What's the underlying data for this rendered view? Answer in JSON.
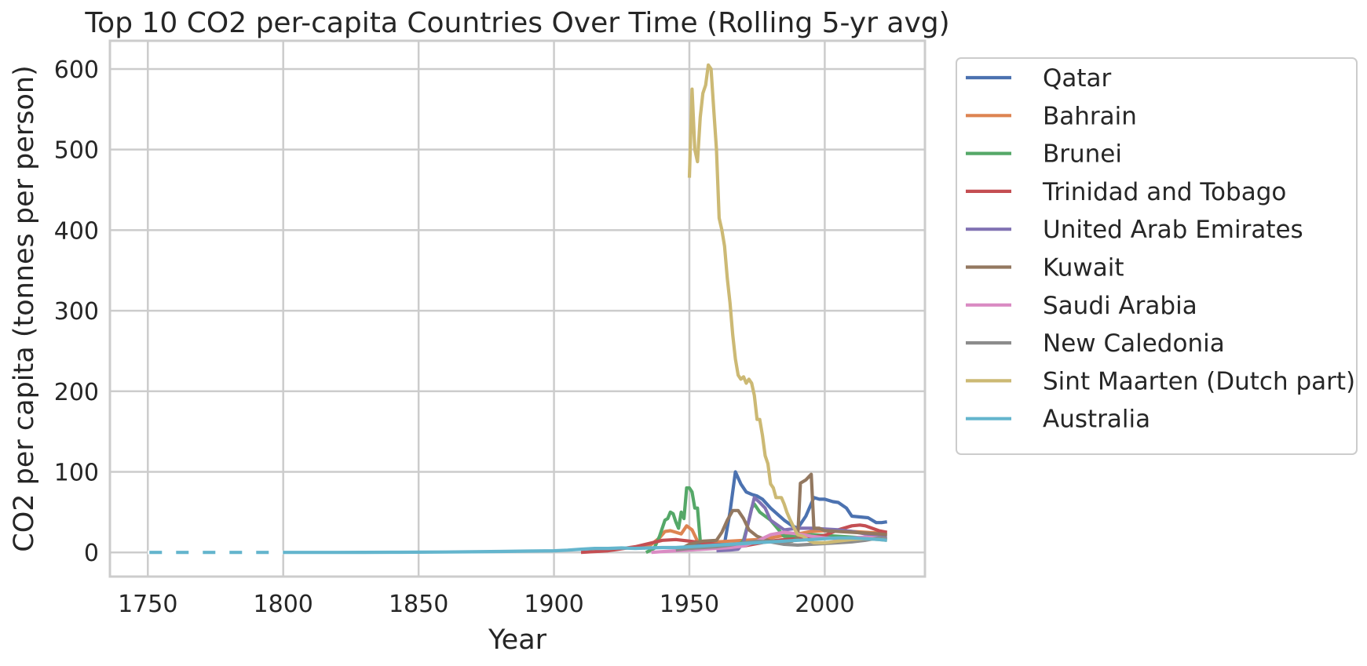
{
  "chart_data": {
    "type": "line",
    "title": "Top 10 CO2 per-capita Countries Over Time (Rolling 5-yr avg)",
    "xlabel": "Year",
    "ylabel": "CO2 per capita (tonnes per person)",
    "xlim": [
      1736,
      2037
    ],
    "ylim": [
      -30,
      635
    ],
    "xticks": [
      1750,
      1800,
      1850,
      1900,
      1950,
      2000
    ],
    "yticks": [
      0,
      100,
      200,
      300,
      400,
      500,
      600
    ],
    "grid": true,
    "legend_position": "outside-right",
    "series": [
      {
        "name": "Qatar",
        "color": "#4c72b0",
        "x": [
          1950,
          1955,
          1960,
          1963,
          1965,
          1967,
          1969,
          1971,
          1973,
          1975,
          1977,
          1980,
          1985,
          1988,
          1990,
          1993,
          1996,
          1998,
          2000,
          2003,
          2005,
          2008,
          2010,
          2013,
          2016,
          2019,
          2021,
          2023
        ],
        "y": [
          8,
          9,
          10,
          11,
          50,
          100,
          85,
          75,
          72,
          70,
          66,
          55,
          40,
          33,
          30,
          45,
          68,
          66,
          66,
          63,
          62,
          55,
          45,
          44,
          43,
          37,
          37,
          38
        ]
      },
      {
        "name": "Bahrain",
        "color": "#dd8452",
        "x": [
          1933,
          1936,
          1939,
          1941,
          1943,
          1945,
          1947,
          1949,
          1951,
          1953,
          1955,
          1960,
          1965,
          1970,
          1975,
          1980,
          1985,
          1990,
          1995,
          2000,
          2005,
          2010,
          2015,
          2020,
          2023
        ],
        "y": [
          5,
          10,
          18,
          26,
          27,
          25,
          23,
          33,
          28,
          14,
          12,
          13,
          14,
          15,
          16,
          18,
          21,
          23,
          26,
          27,
          27,
          26,
          25,
          24,
          23
        ]
      },
      {
        "name": "Brunei",
        "color": "#55a868",
        "x": [
          1934,
          1937,
          1939,
          1941,
          1942,
          1943,
          1944,
          1945,
          1946,
          1947,
          1948,
          1949,
          1950,
          1951,
          1952,
          1953,
          1954,
          1956,
          1960,
          1965,
          1968,
          1970,
          1972,
          1973,
          1974,
          1976,
          1978,
          1980,
          1985,
          1990,
          1995,
          2000,
          2005,
          2010,
          2015,
          2020,
          2023
        ],
        "y": [
          0,
          5,
          20,
          40,
          42,
          50,
          48,
          38,
          30,
          50,
          42,
          80,
          80,
          75,
          55,
          55,
          15,
          8,
          6,
          6,
          8,
          15,
          40,
          55,
          60,
          50,
          45,
          40,
          20,
          20,
          22,
          21,
          20,
          19,
          18,
          17,
          16
        ]
      },
      {
        "name": "Trinidad and Tobago",
        "color": "#c44e52",
        "x": [
          1910,
          1920,
          1930,
          1940,
          1945,
          1950,
          1955,
          1960,
          1965,
          1970,
          1975,
          1980,
          1985,
          1990,
          1995,
          2000,
          2005,
          2010,
          2013,
          2015,
          2020,
          2023
        ],
        "y": [
          0,
          2,
          7,
          15,
          16,
          14,
          12,
          10,
          9,
          8,
          11,
          14,
          16,
          17,
          19,
          21,
          28,
          33,
          34,
          33,
          27,
          25
        ]
      },
      {
        "name": "United Arab Emirates",
        "color": "#8172b3",
        "x": [
          1960,
          1965,
          1968,
          1970,
          1972,
          1974,
          1976,
          1978,
          1980,
          1985,
          1990,
          1995,
          2000,
          2005,
          2010,
          2015,
          2020,
          2023
        ],
        "y": [
          2,
          3,
          4,
          12,
          40,
          68,
          62,
          55,
          40,
          28,
          30,
          30,
          29,
          28,
          26,
          23,
          21,
          20
        ]
      },
      {
        "name": "Kuwait",
        "color": "#937860",
        "x": [
          1946,
          1950,
          1955,
          1960,
          1962,
          1964,
          1966,
          1968,
          1970,
          1972,
          1975,
          1978,
          1980,
          1985,
          1988,
          1990,
          1991,
          1993,
          1995,
          1996,
          1998,
          2000,
          2005,
          2010,
          2015,
          2020,
          2023
        ],
        "y": [
          3,
          10,
          14,
          15,
          25,
          40,
          52,
          52,
          42,
          28,
          20,
          16,
          14,
          13,
          14,
          18,
          86,
          90,
          97,
          30,
          30,
          27,
          26,
          25,
          24,
          23,
          22
        ]
      },
      {
        "name": "Saudi Arabia",
        "color": "#da8bc3",
        "x": [
          1936,
          1940,
          1945,
          1950,
          1955,
          1960,
          1965,
          1970,
          1975,
          1980,
          1985,
          1990,
          1995,
          2000,
          2005,
          2010,
          2015,
          2020,
          2023
        ],
        "y": [
          0,
          1,
          2,
          3,
          4,
          5,
          6,
          8,
          14,
          22,
          25,
          23,
          20,
          18,
          17,
          18,
          19,
          18,
          17
        ]
      },
      {
        "name": "New Caledonia",
        "color": "#8c8c8c",
        "x": [
          1945,
          1950,
          1955,
          1960,
          1965,
          1970,
          1975,
          1980,
          1985,
          1990,
          1995,
          2000,
          2005,
          2010,
          2015,
          2020,
          2023
        ],
        "y": [
          3,
          5,
          6,
          7,
          9,
          12,
          14,
          13,
          10,
          9,
          10,
          11,
          12,
          13,
          15,
          18,
          17
        ]
      },
      {
        "name": "Sint Maarten (Dutch part)",
        "color": "#ccb974",
        "x": [
          1950,
          1951,
          1952,
          1953,
          1954,
          1955,
          1956,
          1957,
          1958,
          1959,
          1960,
          1961,
          1962,
          1963,
          1964,
          1965,
          1966,
          1967,
          1968,
          1969,
          1970,
          1971,
          1972,
          1973,
          1974,
          1975,
          1976,
          1977,
          1978,
          1979,
          1980,
          1981,
          1982,
          1983,
          1984,
          1985,
          1986,
          1987,
          1988,
          1989,
          1990,
          1992,
          1994,
          1996,
          1998,
          2000,
          2005,
          2010,
          2015,
          2020,
          2023
        ],
        "y": [
          465,
          575,
          500,
          485,
          540,
          570,
          580,
          605,
          600,
          550,
          500,
          415,
          400,
          380,
          340,
          310,
          270,
          240,
          220,
          215,
          218,
          210,
          215,
          210,
          195,
          165,
          165,
          145,
          120,
          110,
          85,
          80,
          68,
          68,
          68,
          60,
          50,
          42,
          35,
          28,
          22,
          20,
          15,
          12,
          12,
          12,
          14,
          16,
          17,
          16,
          15
        ]
      },
      {
        "name": "Australia",
        "color": "#64b5cd",
        "x": [
          1750,
          1760,
          1770,
          1780,
          1790,
          1800,
          1810,
          1820,
          1830,
          1840,
          1850,
          1860,
          1870,
          1880,
          1890,
          1900,
          1905,
          1910,
          1915,
          1920,
          1925,
          1930,
          1935,
          1940,
          1945,
          1950,
          1955,
          1960,
          1965,
          1970,
          1975,
          1980,
          1985,
          1990,
          1995,
          2000,
          2005,
          2010,
          2015,
          2020,
          2023
        ],
        "y": [
          0,
          0,
          0,
          0,
          0,
          0,
          0,
          0,
          0.1,
          0.2,
          0.3,
          0.5,
          0.8,
          1.2,
          1.6,
          2,
          2.8,
          4,
          5,
          5,
          5.5,
          5,
          5.5,
          6,
          6,
          7,
          8,
          9,
          10,
          11,
          12,
          13,
          14,
          15,
          16,
          17,
          18,
          18,
          17,
          16,
          15
        ]
      }
    ]
  }
}
